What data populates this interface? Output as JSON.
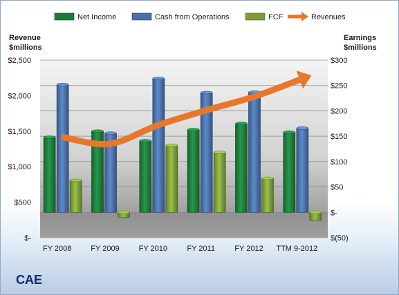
{
  "chart_data": {
    "type": "bar",
    "categories": [
      "FY 2008",
      "FY 2009",
      "FY 2010",
      "FY 2011",
      "FY 2012",
      "TTM 9-2012"
    ],
    "series": [
      {
        "name": "Net Income",
        "axis": "right",
        "color": "#1e7a3c",
        "values": [
          148,
          160,
          141,
          163,
          175,
          158
        ]
      },
      {
        "name": "Cash from Operations",
        "axis": "right",
        "color": "#4a6fa5",
        "values": [
          252,
          156,
          264,
          236,
          237,
          166
        ]
      },
      {
        "name": "FCF",
        "axis": "right",
        "color": "#7c9c3c",
        "values": [
          63,
          -10,
          132,
          118,
          67,
          -16
        ]
      },
      {
        "name": "Revenues",
        "axis": "left",
        "type": "arrow",
        "color": "#e7772b",
        "values": [
          1420,
          1320,
          1580,
          1790,
          1980,
          2230
        ]
      }
    ],
    "left_axis": {
      "label_line1": "Revenue",
      "label_line2": "$millions",
      "min": 0,
      "max": 2500,
      "ticks": [
        0,
        500,
        1000,
        1500,
        2000,
        2500
      ],
      "tick_labels": [
        "$-",
        "$500",
        "$1,000",
        "$1,500",
        "$2,000",
        "$2,500"
      ]
    },
    "right_axis": {
      "label_line1": "Earnings",
      "label_line2": "$millions",
      "min": -50,
      "max": 300,
      "ticks": [
        -50,
        0,
        50,
        100,
        150,
        200,
        250,
        300
      ],
      "tick_labels": [
        "$(50)",
        "$-",
        "$50",
        "$100",
        "$150",
        "$200",
        "$250",
        "$300"
      ]
    },
    "grid": true,
    "legend_position": "top"
  },
  "company": "CAE",
  "colors": {
    "plot_top": "#f4f4f4",
    "plot_bottom": "#8a8a8a",
    "gridline": "#8a8a8a"
  }
}
